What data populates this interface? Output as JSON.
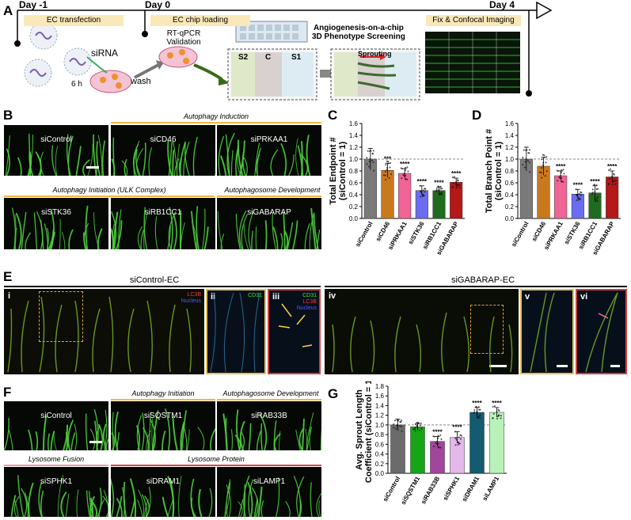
{
  "panelA": {
    "label": "A",
    "day_minus1": "Day -1",
    "day0": "Day 0",
    "day4": "Day 4",
    "ec_transfection": "EC transfection",
    "ec_chip_loading": "EC chip loading",
    "fix_imaging": "Fix & Confocal Imaging",
    "sirna": "siRNA",
    "six_h": "6 h",
    "wash": "wash",
    "rtqpcr_line1": "RT-qPCR",
    "rtqpcr_line2": "Validation",
    "angio_line1": "Angiogenesis-on-a-chip",
    "angio_line2": "3D Phenotype Screening",
    "s2": "S2",
    "c": "C",
    "s1": "S1",
    "sprouting": "Sprouting"
  },
  "panelB": {
    "label": "B",
    "hdr_induction": "Autophagy Induction",
    "hdr_initiation": "Autophagy Initiation (ULK Complex)",
    "hdr_development": "Autophagosome Development",
    "images": [
      "siControl",
      "siCD46",
      "siPRKAA1",
      "siSTK36",
      "siRB1CC1",
      "siGABARAP"
    ]
  },
  "panelE": {
    "label": "E",
    "title_control": "siControl-EC",
    "title_gabarap": "siGABARAP-EC",
    "insets": [
      "i",
      "ii",
      "iii",
      "iv",
      "v",
      "vi"
    ],
    "ch_lc3b": "LC3B",
    "ch_nucleus": "Nucleus",
    "ch_cd31": "CD31"
  },
  "panelF": {
    "label": "F",
    "hdr_initiation": "Autophagy Initiation",
    "hdr_development": "Autophagosome Development",
    "hdr_fusion": "Lysosome Fusion",
    "hdr_protein": "Lysosome Protein",
    "images": [
      "siControl",
      "siSQSTM1",
      "siRAB33B",
      "siSPHK1",
      "siDRAM1",
      "siLAMP1"
    ]
  },
  "chart_data": [
    {
      "panel": "C",
      "type": "bar",
      "ylabel": "Total Endpoint # (siControl = 1)",
      "ylabel_line1": "Total Endpoint #",
      "ylabel_line2": "(siControl = 1)",
      "ylim": [
        0,
        1.6
      ],
      "yticks": [
        "0.0",
        "0.2",
        "0.4",
        "0.6",
        "0.8",
        "1.0",
        "1.2",
        "1.4",
        "1.6"
      ],
      "reference_line": 1.0,
      "categories": [
        "siControl",
        "siCD46",
        "siPRKAA1",
        "siSTK36",
        "siRB1CC1",
        "siGABARAP"
      ],
      "values": [
        1.0,
        0.81,
        0.76,
        0.47,
        0.47,
        0.61
      ],
      "errors": [
        0.18,
        0.12,
        0.08,
        0.08,
        0.06,
        0.07
      ],
      "significance": [
        "",
        "***",
        "****",
        "****",
        "****",
        "****"
      ],
      "colors": [
        "#7a7a7a",
        "#c8791e",
        "#f06496",
        "#6b6cf0",
        "#1f6b1f",
        "#b41818"
      ]
    },
    {
      "panel": "D",
      "type": "bar",
      "ylabel": "Total Branch Point # (siControl = 1)",
      "ylabel_line1": "Total Branch Point #",
      "ylabel_line2": "(siControl = 1)",
      "ylim": [
        0,
        1.6
      ],
      "yticks": [
        "0.0",
        "0.2",
        "0.4",
        "0.6",
        "0.8",
        "1.0",
        "1.2",
        "1.4",
        "1.6"
      ],
      "reference_line": 1.0,
      "categories": [
        "siControl",
        "siCD46",
        "siPRKAA1",
        "siSTK36",
        "siRB1CC1",
        "siGABARAP"
      ],
      "values": [
        1.0,
        0.88,
        0.72,
        0.41,
        0.43,
        0.7
      ],
      "errors": [
        0.2,
        0.15,
        0.08,
        0.08,
        0.12,
        0.1
      ],
      "significance": [
        "",
        "",
        "****",
        "****",
        "****",
        "****"
      ],
      "colors": [
        "#7a7a7a",
        "#c8791e",
        "#f06496",
        "#6b6cf0",
        "#1f6b1f",
        "#b41818"
      ]
    },
    {
      "panel": "G",
      "type": "bar",
      "ylabel": "Avg. Sprout Length Coefficient (siControl = 1)",
      "ylabel_line1": "Avg. Sprout Length",
      "ylabel_line2": "Coefficient (siControl = 1)",
      "ylim": [
        0,
        1.8
      ],
      "yticks": [
        "0.0",
        "0.2",
        "0.4",
        "0.6",
        "0.8",
        "1.0",
        "1.2",
        "1.4",
        "1.6",
        "1.8"
      ],
      "reference_line": 1.0,
      "categories": [
        "siControl",
        "siSQSTM1",
        "siRAB33B",
        "siSPHK1",
        "siDRAM1",
        "siLAMP1"
      ],
      "values": [
        1.0,
        0.96,
        0.66,
        0.74,
        1.26,
        1.26
      ],
      "errors": [
        0.12,
        0.07,
        0.1,
        0.12,
        0.1,
        0.1
      ],
      "significance": [
        "",
        "",
        "****",
        "****",
        "****",
        "****"
      ],
      "colors": [
        "#6b6b6b",
        "#16a516",
        "#a1469c",
        "#e4b8ea",
        "#145a70",
        "#b8f2b8"
      ]
    }
  ]
}
